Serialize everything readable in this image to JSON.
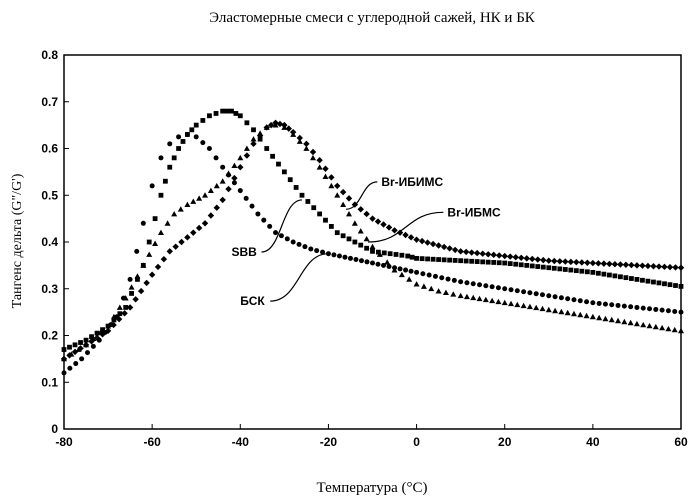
{
  "chart_data": {
    "type": "scatter",
    "title": "Эластомерные смеси с углеродной сажей, НК и БК",
    "xlabel": "Температура (°C)",
    "ylabel": "Тангенс дельта (G\"/G')",
    "xlim": [
      -80,
      60
    ],
    "ylim": [
      0,
      0.8
    ],
    "xticks": [
      -80,
      -60,
      -40,
      -20,
      0,
      20,
      40,
      60
    ],
    "yticks": [
      0,
      0.1,
      0.2,
      0.3,
      0.4,
      0.5,
      0.6,
      0.7,
      0.8
    ],
    "grid": false,
    "series": [
      {
        "name": "SBB",
        "marker": "square",
        "x": [
          -80,
          -75,
          -70,
          -66,
          -62,
          -58,
          -56,
          -54,
          -52,
          -50,
          -47,
          -44,
          -42,
          -40,
          -37,
          -34,
          -30,
          -26,
          -22,
          -18,
          -14,
          -10,
          -6,
          -2,
          0,
          10,
          20,
          30,
          40,
          50,
          60
        ],
        "y": [
          0.17,
          0.19,
          0.22,
          0.26,
          0.35,
          0.5,
          0.56,
          0.6,
          0.63,
          0.65,
          0.67,
          0.68,
          0.68,
          0.67,
          0.64,
          0.6,
          0.55,
          0.5,
          0.46,
          0.42,
          0.4,
          0.38,
          0.375,
          0.37,
          0.365,
          0.36,
          0.355,
          0.345,
          0.335,
          0.32,
          0.305
        ]
      },
      {
        "name": "БСК",
        "marker": "circle",
        "x": [
          -80,
          -76,
          -72,
          -68,
          -65,
          -62,
          -60,
          -58,
          -56,
          -54,
          -52,
          -50,
          -47,
          -44,
          -40,
          -36,
          -32,
          -28,
          -24,
          -20,
          -15,
          -10,
          -5,
          0,
          10,
          20,
          30,
          40,
          50,
          60
        ],
        "y": [
          0.12,
          0.15,
          0.19,
          0.24,
          0.32,
          0.44,
          0.52,
          0.58,
          0.61,
          0.625,
          0.63,
          0.625,
          0.6,
          0.56,
          0.51,
          0.46,
          0.42,
          0.4,
          0.385,
          0.375,
          0.365,
          0.355,
          0.345,
          0.335,
          0.315,
          0.3,
          0.285,
          0.27,
          0.26,
          0.25
        ]
      },
      {
        "name": "Br-ИБМС",
        "marker": "triangle",
        "x": [
          -80,
          -75,
          -70,
          -66,
          -62,
          -58,
          -55,
          -52,
          -48,
          -44,
          -40,
          -37,
          -34,
          -32,
          -30,
          -28,
          -25,
          -22,
          -18,
          -14,
          -10,
          -5,
          0,
          5,
          10,
          20,
          30,
          40,
          50,
          60
        ],
        "y": [
          0.15,
          0.18,
          0.22,
          0.28,
          0.35,
          0.42,
          0.46,
          0.48,
          0.5,
          0.53,
          0.58,
          0.62,
          0.645,
          0.65,
          0.645,
          0.63,
          0.6,
          0.56,
          0.5,
          0.44,
          0.39,
          0.34,
          0.31,
          0.295,
          0.285,
          0.27,
          0.255,
          0.24,
          0.225,
          0.21
        ]
      },
      {
        "name": "Br-ИБИМС",
        "marker": "diamond",
        "x": [
          -80,
          -75,
          -70,
          -65,
          -60,
          -56,
          -52,
          -48,
          -44,
          -40,
          -37,
          -34,
          -32,
          -30,
          -28,
          -25,
          -22,
          -18,
          -14,
          -10,
          -5,
          0,
          10,
          20,
          30,
          40,
          50,
          60
        ],
        "y": [
          0.15,
          0.18,
          0.21,
          0.26,
          0.33,
          0.38,
          0.41,
          0.44,
          0.49,
          0.56,
          0.61,
          0.645,
          0.655,
          0.65,
          0.635,
          0.61,
          0.575,
          0.52,
          0.48,
          0.45,
          0.425,
          0.405,
          0.38,
          0.37,
          0.36,
          0.355,
          0.35,
          0.345
        ]
      }
    ],
    "annotations": [
      {
        "text": "Br-ИБИМС",
        "x": -8,
        "y": 0.52,
        "point": [
          -16,
          0.47
        ]
      },
      {
        "text": "Br-ИБМС",
        "x": 7,
        "y": 0.455,
        "point": [
          -11,
          0.4
        ]
      },
      {
        "text": "SBB",
        "x": -42,
        "y": 0.37,
        "point": [
          -26,
          0.49
        ]
      },
      {
        "text": "БСК",
        "x": -40,
        "y": 0.265,
        "point": [
          -20,
          0.375
        ]
      }
    ]
  }
}
